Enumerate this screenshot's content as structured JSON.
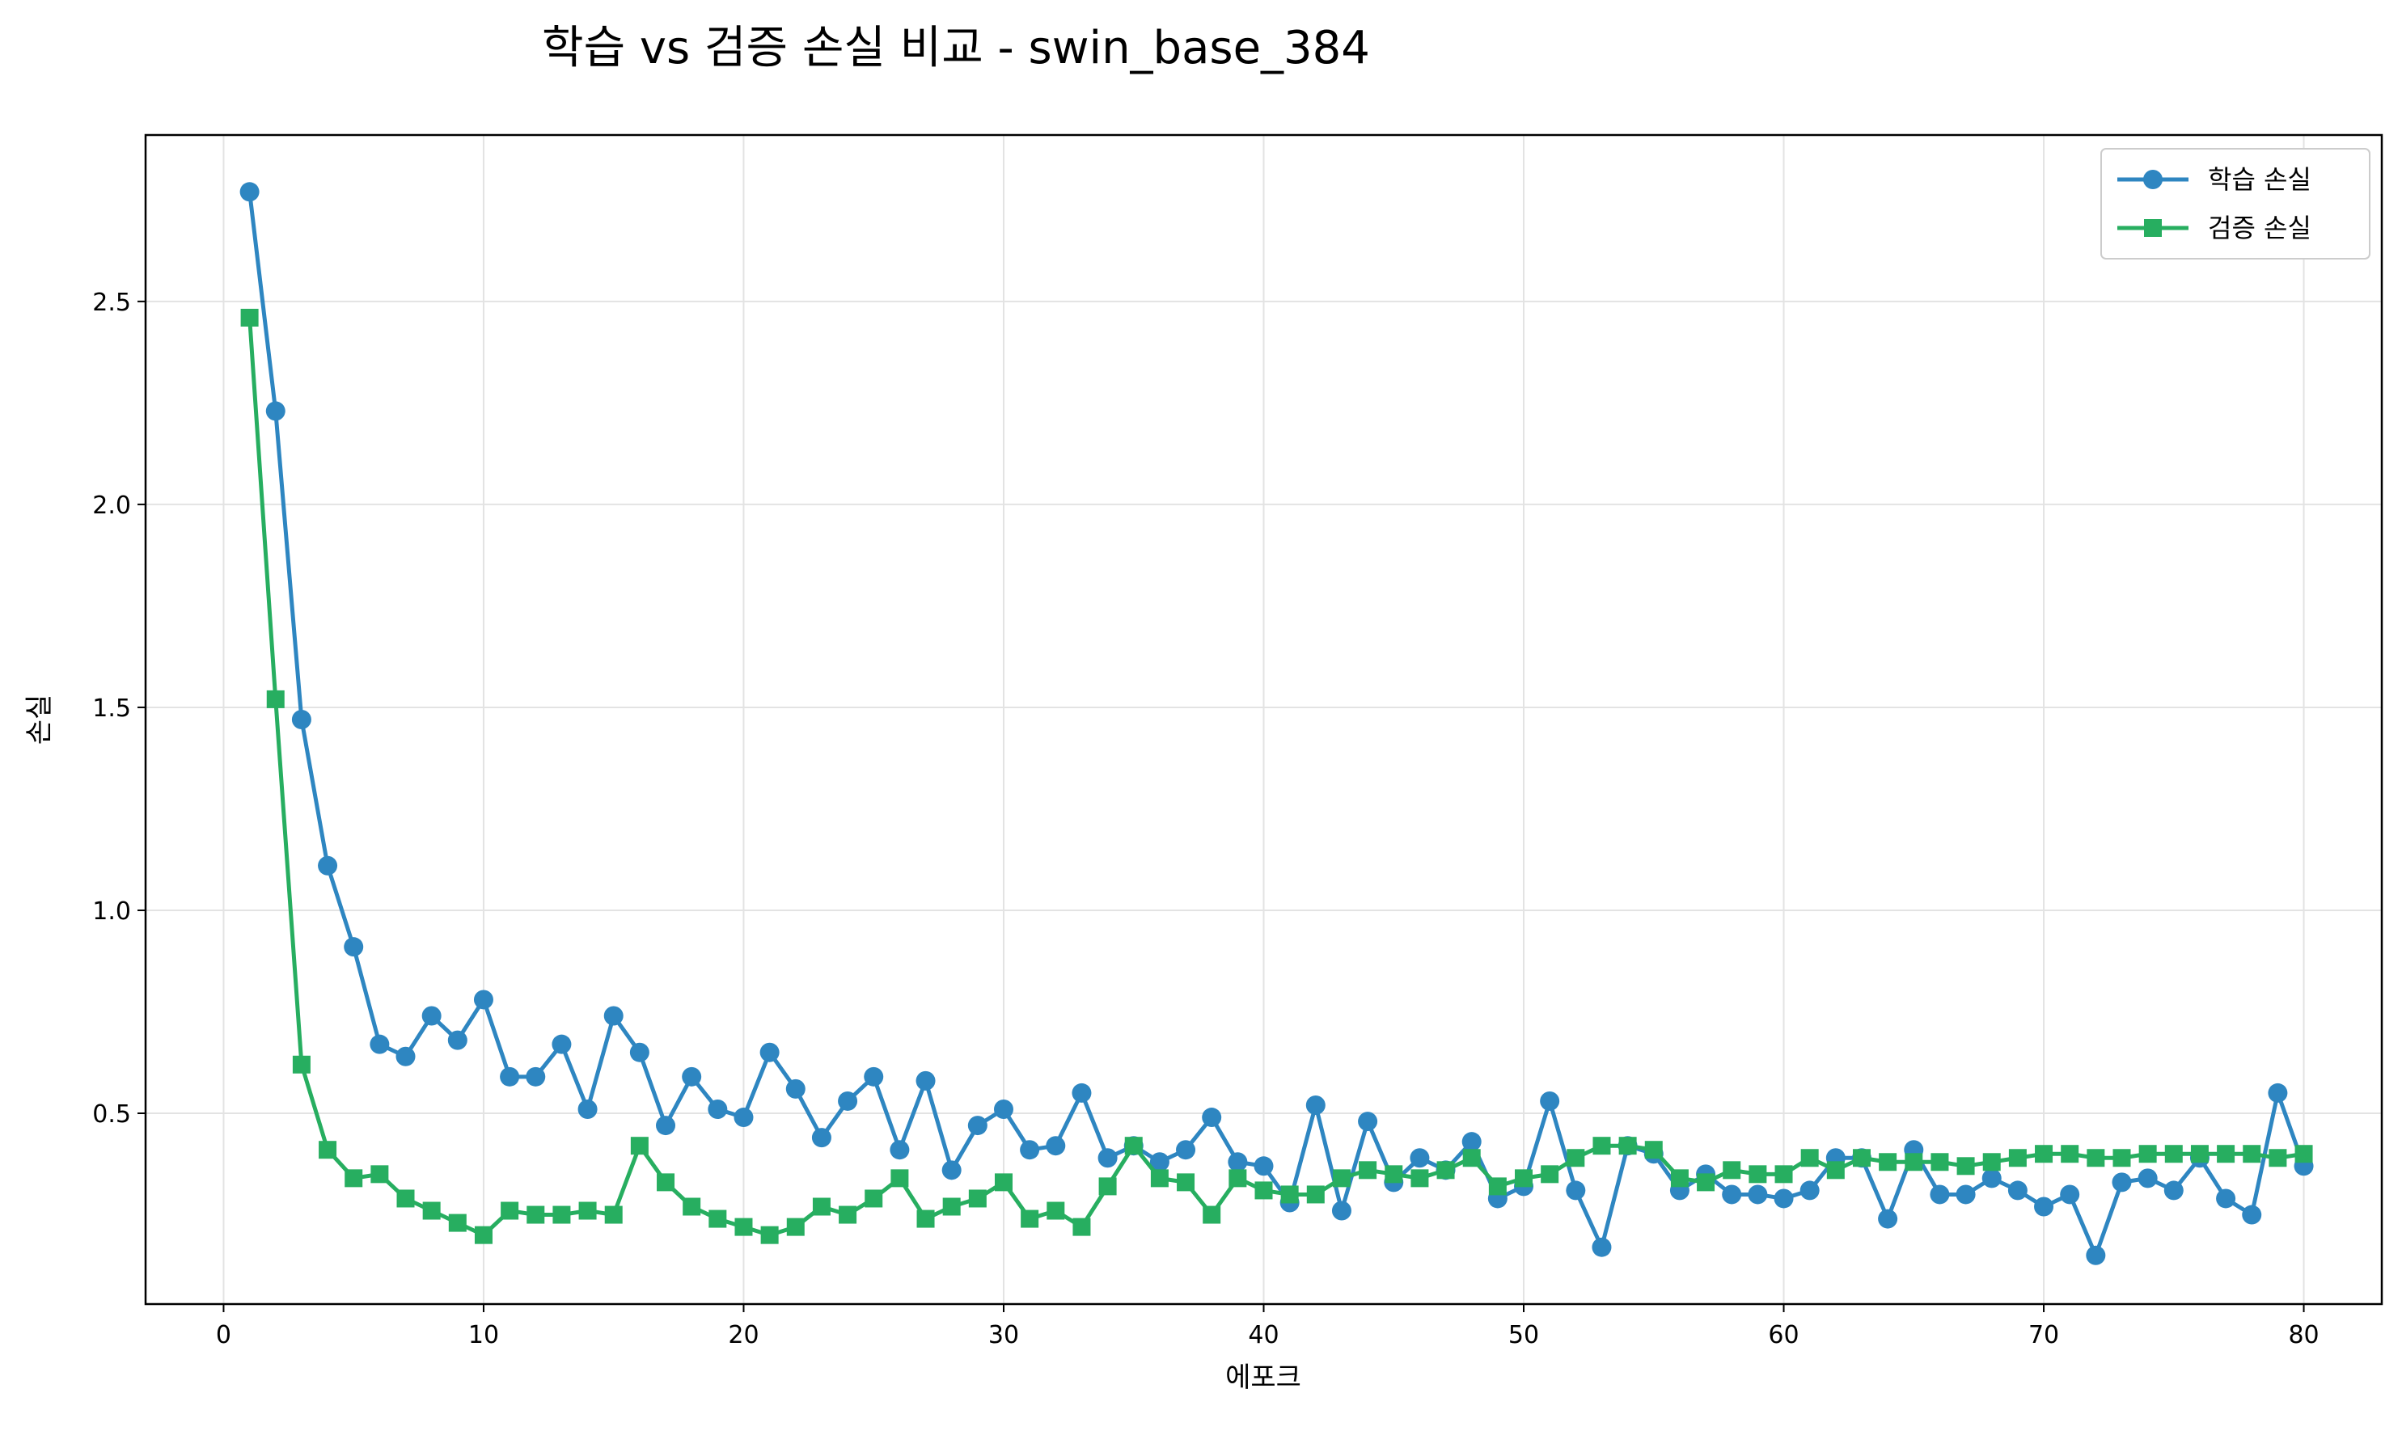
{
  "chart_data": {
    "type": "line",
    "title": "학습 vs 검증 손실 비교 - swin_base_384",
    "xlabel": "에포크",
    "ylabel": "손실",
    "xlim": [
      -3,
      83
    ],
    "ylim": [
      0.03,
      2.91
    ],
    "x_ticks": [
      0,
      10,
      20,
      30,
      40,
      50,
      60,
      70,
      80
    ],
    "x_tick_labels": [
      "0",
      "10",
      "20",
      "30",
      "40",
      "50",
      "60",
      "70",
      "80"
    ],
    "y_ticks": [
      0.5,
      1.0,
      1.5,
      2.0,
      2.5
    ],
    "y_tick_labels": [
      "0.5",
      "1.0",
      "1.5",
      "2.0",
      "2.5"
    ],
    "grid": true,
    "legend_position": "top-right",
    "x": [
      1,
      2,
      3,
      4,
      5,
      6,
      7,
      8,
      9,
      10,
      11,
      12,
      13,
      14,
      15,
      16,
      17,
      18,
      19,
      20,
      21,
      22,
      23,
      24,
      25,
      26,
      27,
      28,
      29,
      30,
      31,
      32,
      33,
      34,
      35,
      36,
      37,
      38,
      39,
      40,
      41,
      42,
      43,
      44,
      45,
      46,
      47,
      48,
      49,
      50,
      51,
      52,
      53,
      54,
      55,
      56,
      57,
      58,
      59,
      60,
      61,
      62,
      63,
      64,
      65,
      66,
      67,
      68,
      69,
      70,
      71,
      72,
      73,
      74,
      75,
      76,
      77,
      78,
      79,
      80
    ],
    "series": [
      {
        "name": "학습 손실",
        "color": "#2e86c1",
        "marker": "circle",
        "values": [
          2.77,
          2.23,
          1.47,
          1.11,
          0.91,
          0.67,
          0.64,
          0.74,
          0.68,
          0.78,
          0.59,
          0.59,
          0.67,
          0.51,
          0.74,
          0.65,
          0.47,
          0.59,
          0.51,
          0.49,
          0.65,
          0.56,
          0.44,
          0.53,
          0.59,
          0.41,
          0.58,
          0.36,
          0.47,
          0.51,
          0.41,
          0.42,
          0.55,
          0.39,
          0.42,
          0.38,
          0.41,
          0.49,
          0.38,
          0.37,
          0.28,
          0.52,
          0.26,
          0.48,
          0.33,
          0.39,
          0.36,
          0.43,
          0.29,
          0.32,
          0.53,
          0.31,
          0.17,
          0.42,
          0.4,
          0.31,
          0.35,
          0.3,
          0.3,
          0.29,
          0.31,
          0.39,
          0.39,
          0.24,
          0.41,
          0.3,
          0.3,
          0.34,
          0.31,
          0.27,
          0.3,
          0.15,
          0.33,
          0.34,
          0.31,
          0.39,
          0.29,
          0.25,
          0.55,
          0.37
        ]
      },
      {
        "name": "검증 손실",
        "color": "#27ae60",
        "marker": "square",
        "values": [
          2.46,
          1.52,
          0.62,
          0.41,
          0.34,
          0.35,
          0.29,
          0.26,
          0.23,
          0.2,
          0.26,
          0.25,
          0.25,
          0.26,
          0.25,
          0.42,
          0.33,
          0.27,
          0.24,
          0.22,
          0.2,
          0.22,
          0.27,
          0.25,
          0.29,
          0.34,
          0.24,
          0.27,
          0.29,
          0.33,
          0.24,
          0.26,
          0.22,
          0.32,
          0.42,
          0.34,
          0.33,
          0.25,
          0.34,
          0.31,
          0.3,
          0.3,
          0.34,
          0.36,
          0.35,
          0.34,
          0.36,
          0.39,
          0.32,
          0.34,
          0.35,
          0.39,
          0.42,
          0.42,
          0.41,
          0.34,
          0.33,
          0.36,
          0.35,
          0.35,
          0.39,
          0.36,
          0.39,
          0.38,
          0.38,
          0.38,
          0.37,
          0.38,
          0.39,
          0.4,
          0.4,
          0.39,
          0.39,
          0.4,
          0.4,
          0.4,
          0.4,
          0.4,
          0.39,
          0.4
        ]
      }
    ]
  }
}
